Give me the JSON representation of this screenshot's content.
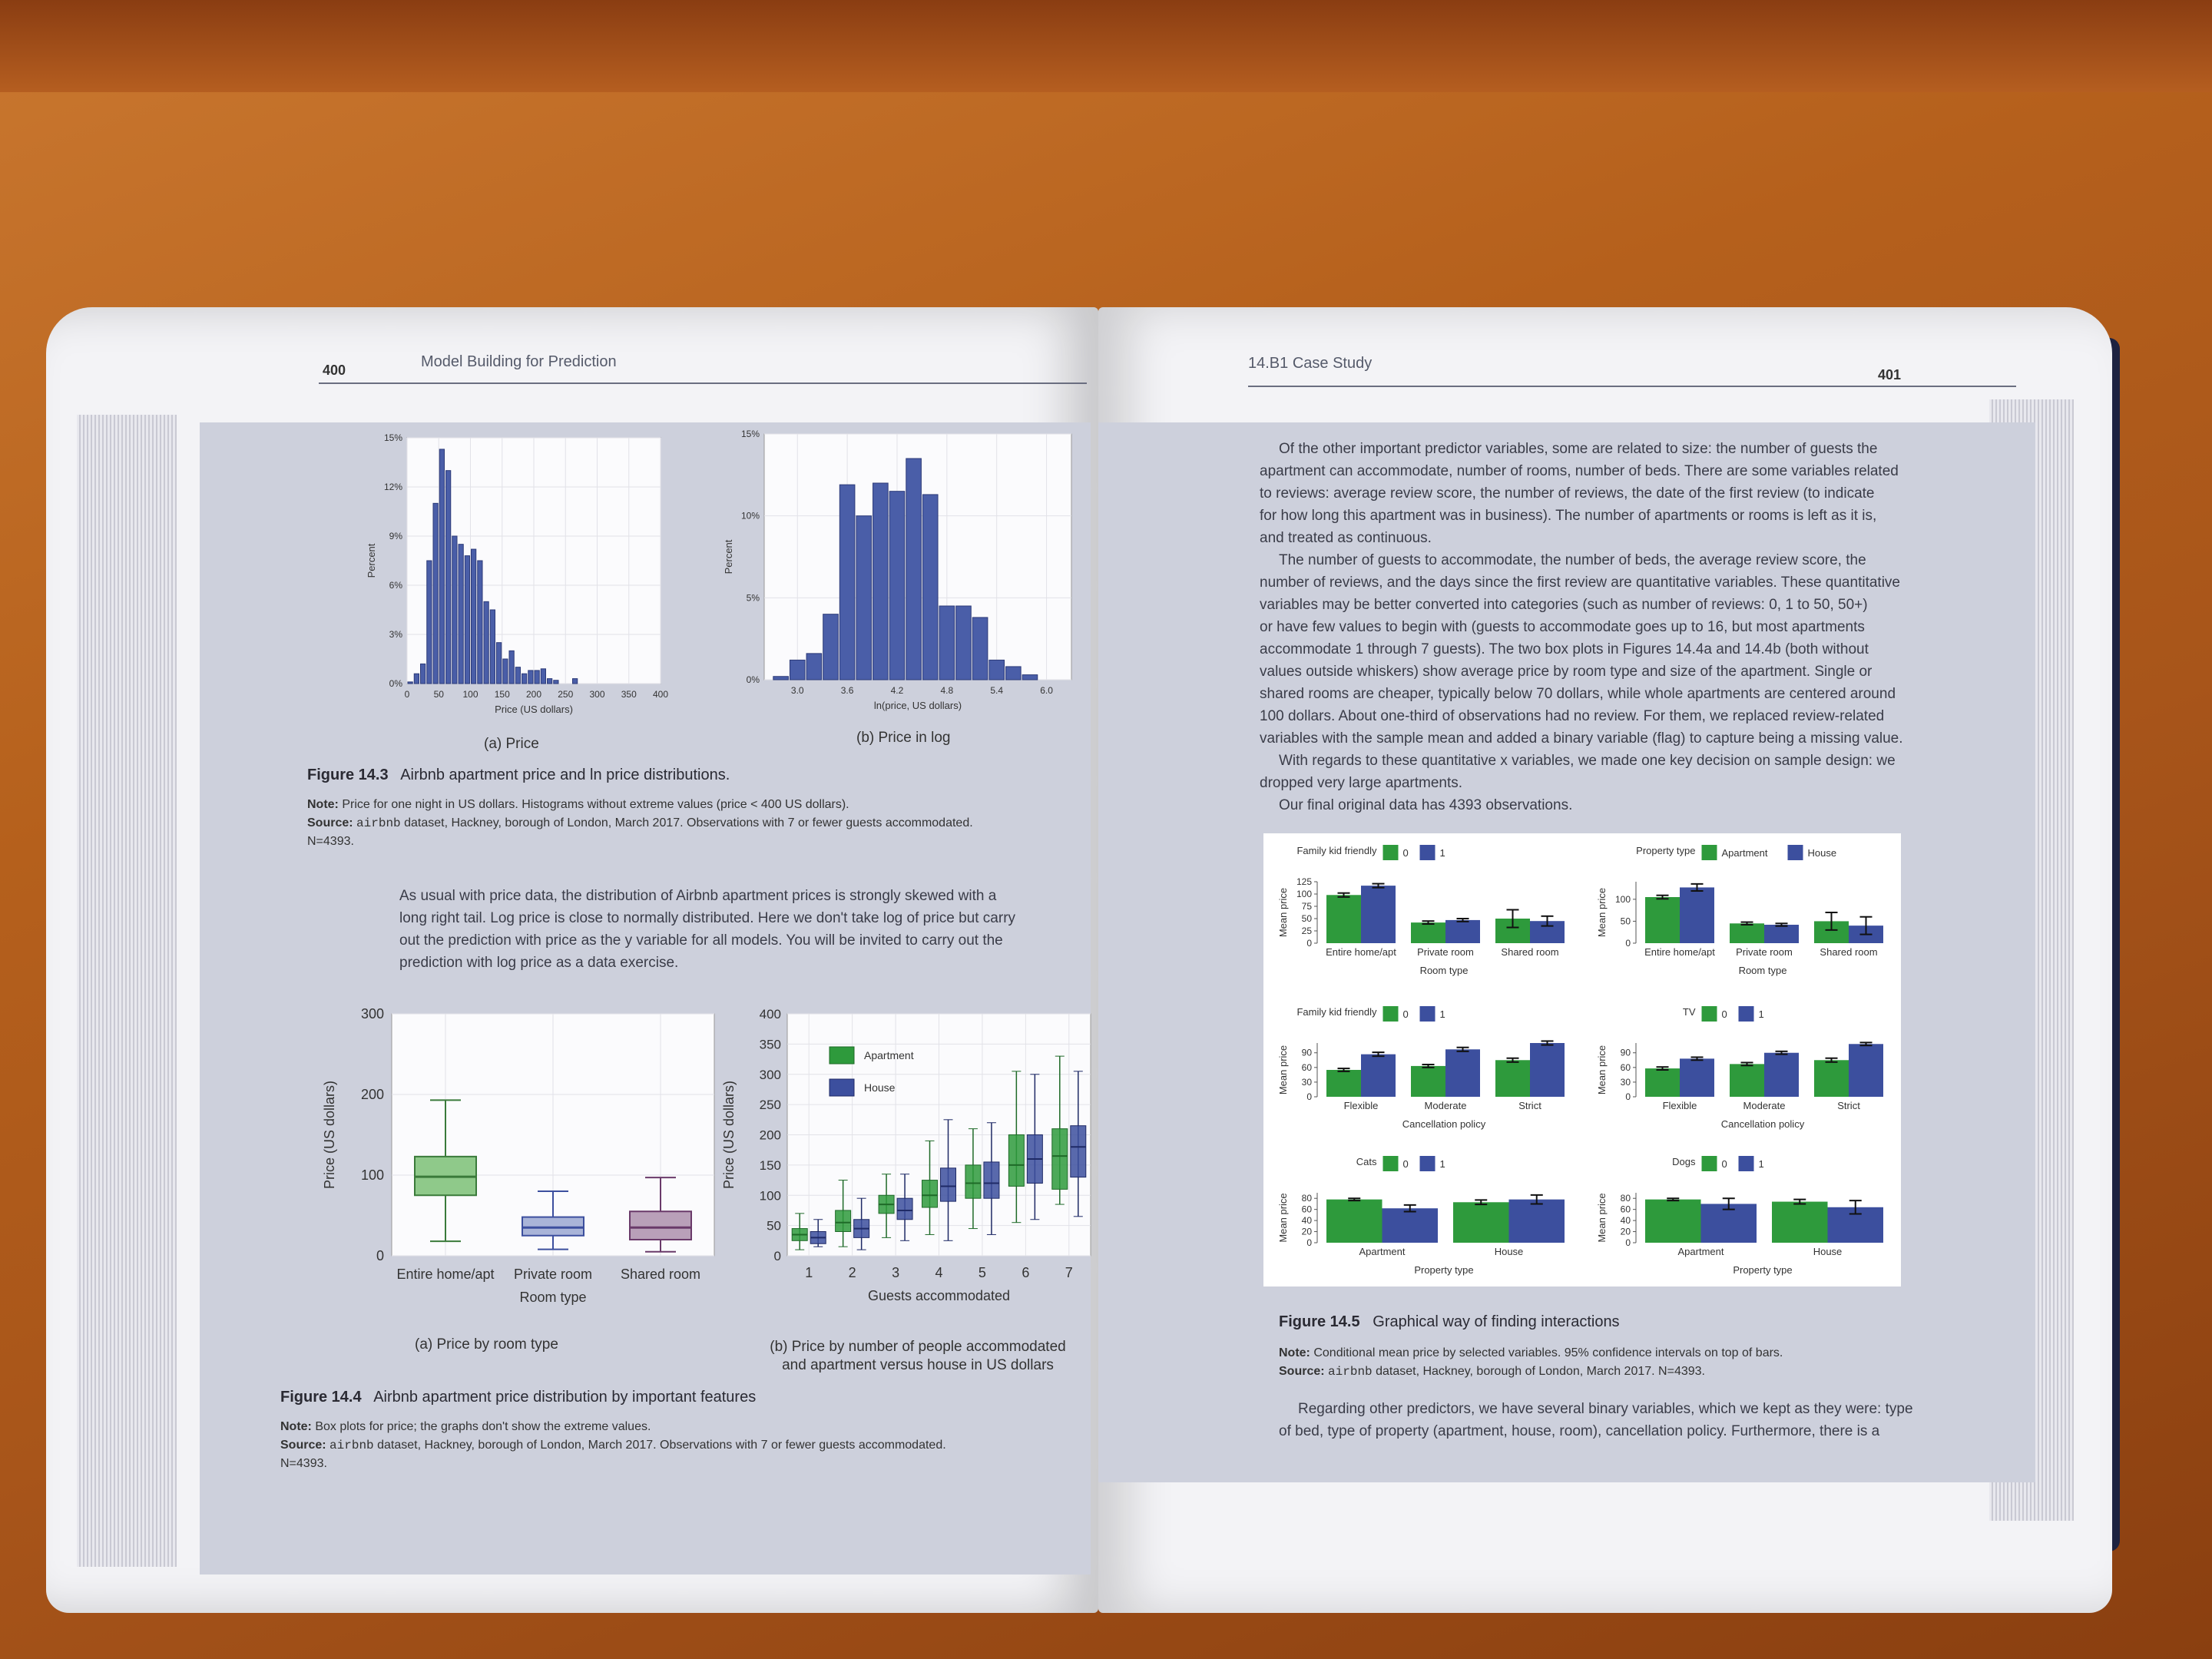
{
  "left_page": {
    "page_number": "400",
    "running_head": "Model Building for Prediction",
    "figure_14_3": {
      "label": "Figure 14.3",
      "title": "Airbnb apartment price and ln price distributions.",
      "note_label": "Note:",
      "note": "Price for one night in US dollars. Histograms without extreme values (price < 400 US dollars).",
      "source_label": "Source:",
      "source_dataset": "airbnb",
      "source": "dataset, Hackney, borough of London, March 2017. Observations with 7 or fewer guests accommodated.",
      "n": "N=4393.",
      "panel_a_caption": "(a) Price",
      "panel_b_caption": "(b) Price in log"
    },
    "paragraph": [
      "As usual with price data, the distribution of Airbnb apartment prices is strongly skewed with a",
      "long right tail. Log price is close to normally distributed. Here we don't take log of price but carry",
      "out the prediction with price as the y variable for all models. You will be invited to carry out the",
      "prediction with log price as a data exercise."
    ],
    "figure_14_4": {
      "label": "Figure 14.4",
      "title": "Airbnb apartment price distribution by important features",
      "note_label": "Note:",
      "note": "Box plots for price; the graphs don't show the extreme values.",
      "source_label": "Source:",
      "source_dataset": "airbnb",
      "source": "dataset, Hackney, borough of London, March 2017. Observations with 7 or fewer guests accommodated.",
      "n": "N=4393.",
      "panel_a_caption": "(a) Price by room type",
      "panel_b_caption_1": "(b) Price by number of people accommodated",
      "panel_b_caption_2": "and apartment versus house in US dollars"
    }
  },
  "right_page": {
    "page_number": "401",
    "running_head": "14.B1  Case Study",
    "paragraphs": [
      "Of the other important predictor variables, some are related to size: the number of guests the",
      "apartment can accommodate, number of rooms, number of beds. There are some variables related",
      "to reviews: average review score, the number of reviews, the date of the first review (to indicate",
      "for how long this apartment was in business). The number of apartments or rooms is left as it is,",
      "and treated as continuous.",
      "The number of guests to accommodate, the number of beds, the average review score, the",
      "number of reviews, and the days since the first review are quantitative variables. These quantitative",
      "variables may be better converted into categories (such as number of reviews: 0, 1 to 50, 50+)",
      "or have few values to begin with (guests to accommodate goes up to 16, but most apartments",
      "accommodate 1 through 7 guests). The two box plots in Figures 14.4a and 14.4b (both without",
      "values outside whiskers) show average price by room type and size of the apartment. Single or",
      "shared rooms are cheaper, typically below 70 dollars, while whole apartments are centered around",
      "100 dollars. About one-third of observations had no review. For them, we replaced review-related",
      "variables with the sample mean and added a binary variable (flag) to capture being a missing value.",
      "With regards to these quantitative x variables, we made one key decision on sample design: we",
      "dropped very large apartments.",
      "Our final original data has 4393 observations."
    ],
    "figure_14_5": {
      "label": "Figure 14.5",
      "title": "Graphical way of finding interactions",
      "note_label": "Note:",
      "note": "Conditional mean price by selected variables. 95% confidence intervals on top of bars.",
      "source_label": "Source:",
      "source_dataset": "airbnb",
      "source": "dataset, Hackney, borough of London, March 2017. N=4393."
    },
    "last_paragraph": [
      "Regarding other predictors, we have several binary variables, which we kept as they were: type",
      "of bed, type of property (apartment, house, room), cancellation policy. Furthermore, there is a"
    ]
  },
  "colors": {
    "hist_blue": "#4a5ea8",
    "green": "#2e9a3c",
    "blue": "#3c4f9e",
    "box_green": "#8fc98a",
    "box_blue": "#a9b4d8",
    "box_purple": "#b9a0b9"
  },
  "chart_data": [
    {
      "id": "fig14_3a",
      "type": "bar",
      "xlabel": "Price (US dollars)",
      "ylabel": "Percent",
      "xlim": [
        0,
        400
      ],
      "ylim": [
        0,
        15
      ],
      "xticks": [
        "0",
        "50",
        "100",
        "150",
        "200",
        "250",
        "300",
        "350",
        "400"
      ],
      "yticks": [
        "0%",
        "3%",
        "6%",
        "9%",
        "12%",
        "15%"
      ],
      "bin_width": 10,
      "x": [
        5,
        15,
        25,
        35,
        45,
        55,
        65,
        75,
        85,
        95,
        105,
        115,
        125,
        135,
        145,
        155,
        165,
        175,
        185,
        195,
        205,
        215,
        225,
        235,
        245,
        255,
        265,
        275,
        285,
        295,
        305,
        315,
        325,
        335,
        345,
        355,
        365,
        375,
        385,
        395
      ],
      "values": [
        0.1,
        0.6,
        1.2,
        7.5,
        11.0,
        14.3,
        13.0,
        9.0,
        8.5,
        7.8,
        8.2,
        7.5,
        5.0,
        4.5,
        2.5,
        1.5,
        2.0,
        1.0,
        0.6,
        0.8,
        0.8,
        0.9,
        0.3,
        0.2,
        0.0,
        0.0,
        0.3,
        0.0,
        0.0,
        0.0,
        0.0,
        0.0,
        0.0,
        0.0,
        0.0,
        0.0,
        0.0,
        0.0,
        0.0,
        0.0
      ]
    },
    {
      "id": "fig14_3b",
      "type": "bar",
      "xlabel": "ln(price, US dollars)",
      "ylabel": "Percent",
      "xlim": [
        2.6,
        6.3
      ],
      "ylim": [
        0,
        15
      ],
      "xticks": [
        "3.0",
        "3.6",
        "4.2",
        "4.8",
        "5.4",
        "6.0"
      ],
      "yticks": [
        "0%",
        "5%",
        "10%",
        "15%"
      ],
      "bin_width": 0.2,
      "x": [
        2.8,
        3.0,
        3.2,
        3.4,
        3.6,
        3.8,
        4.0,
        4.2,
        4.4,
        4.6,
        4.8,
        5.0,
        5.2,
        5.4,
        5.6,
        5.8
      ],
      "values": [
        0.2,
        1.2,
        1.6,
        4.0,
        11.9,
        10.0,
        12.0,
        11.5,
        13.5,
        11.3,
        4.5,
        4.5,
        3.8,
        1.2,
        0.8,
        0.3
      ]
    },
    {
      "id": "fig14_4a",
      "type": "box",
      "xlabel": "Room type",
      "ylabel": "Price (US dollars)",
      "ylim": [
        0,
        300
      ],
      "yticks": [
        "0",
        "100",
        "200",
        "300"
      ],
      "categories": [
        "Entire home/apt",
        "Private room",
        "Shared room"
      ],
      "boxes": [
        {
          "low": 18,
          "q1": 75,
          "median": 98,
          "q3": 123,
          "high": 193
        },
        {
          "low": 8,
          "q1": 25,
          "median": 35,
          "q3": 48,
          "high": 80
        },
        {
          "low": 5,
          "q1": 20,
          "median": 35,
          "q3": 55,
          "high": 97
        }
      ]
    },
    {
      "id": "fig14_4b",
      "type": "box",
      "xlabel": "Guests accommodated",
      "ylabel": "Price (US dollars)",
      "ylim": [
        0,
        400
      ],
      "yticks": [
        "0",
        "50",
        "100",
        "150",
        "200",
        "250",
        "300",
        "350",
        "400"
      ],
      "categories": [
        "1",
        "2",
        "3",
        "4",
        "5",
        "6",
        "7"
      ],
      "legend": [
        "Apartment",
        "House"
      ],
      "series": [
        {
          "name": "Apartment",
          "boxes": [
            {
              "low": 10,
              "q1": 25,
              "median": 35,
              "q3": 45,
              "high": 70
            },
            {
              "low": 15,
              "q1": 40,
              "median": 55,
              "q3": 75,
              "high": 125
            },
            {
              "low": 30,
              "q1": 70,
              "median": 85,
              "q3": 100,
              "high": 135
            },
            {
              "low": 35,
              "q1": 80,
              "median": 100,
              "q3": 125,
              "high": 190
            },
            {
              "low": 45,
              "q1": 95,
              "median": 120,
              "q3": 150,
              "high": 210
            },
            {
              "low": 55,
              "q1": 115,
              "median": 150,
              "q3": 200,
              "high": 305
            },
            {
              "low": 85,
              "q1": 110,
              "median": 165,
              "q3": 210,
              "high": 330
            }
          ]
        },
        {
          "name": "House",
          "boxes": [
            {
              "low": 15,
              "q1": 20,
              "median": 30,
              "q3": 40,
              "high": 60
            },
            {
              "low": 10,
              "q1": 30,
              "median": 45,
              "q3": 60,
              "high": 95
            },
            {
              "low": 25,
              "q1": 60,
              "median": 75,
              "q3": 95,
              "high": 135
            },
            {
              "low": 25,
              "q1": 90,
              "median": 115,
              "q3": 145,
              "high": 225
            },
            {
              "low": 35,
              "q1": 95,
              "median": 120,
              "q3": 155,
              "high": 220
            },
            {
              "low": 60,
              "q1": 120,
              "median": 160,
              "q3": 200,
              "high": 300
            },
            {
              "low": 65,
              "q1": 130,
              "median": 180,
              "q3": 215,
              "high": 305
            }
          ]
        }
      ]
    },
    {
      "id": "fig14_5a",
      "type": "bar",
      "legend_title": "Family kid friendly",
      "legend": [
        "0",
        "1"
      ],
      "xlabel": "Room type",
      "ylabel": "Mean price",
      "ylim": [
        0,
        125
      ],
      "yticks": [
        "0",
        "25",
        "50",
        "75",
        "100",
        "125"
      ],
      "categories": [
        "Entire home/apt",
        "Private room",
        "Shared room"
      ],
      "series": [
        {
          "name": "0",
          "values": [
            98,
            42,
            50
          ],
          "err": [
            4,
            3,
            18
          ]
        },
        {
          "name": "1",
          "values": [
            117,
            47,
            45
          ],
          "err": [
            4,
            3,
            10
          ]
        }
      ]
    },
    {
      "id": "fig14_5b",
      "type": "bar",
      "legend_title": "Property type",
      "legend": [
        "Apartment",
        "House"
      ],
      "xlabel": "Room type",
      "ylabel": "Mean price",
      "ylim": [
        0,
        140
      ],
      "yticks": [
        "0",
        "50",
        "100"
      ],
      "categories": [
        "Entire home/apt",
        "Private room",
        "Shared room"
      ],
      "series": [
        {
          "name": "Apartment",
          "values": [
            105,
            45,
            50
          ],
          "err": [
            4,
            3,
            20
          ]
        },
        {
          "name": "House",
          "values": [
            127,
            42,
            40
          ],
          "err": [
            8,
            3,
            20
          ]
        }
      ]
    },
    {
      "id": "fig14_5c",
      "type": "bar",
      "legend_title": "Family kid friendly",
      "legend": [
        "0",
        "1"
      ],
      "xlabel": "Cancellation policy",
      "ylabel": "Mean price",
      "ylim": [
        0,
        110
      ],
      "yticks": [
        "0",
        "30",
        "60",
        "90"
      ],
      "categories": [
        "Flexible",
        "Moderate",
        "Strict"
      ],
      "series": [
        {
          "name": "0",
          "values": [
            55,
            63,
            75
          ],
          "err": [
            3,
            3,
            4
          ]
        },
        {
          "name": "1",
          "values": [
            87,
            97,
            110
          ],
          "err": [
            4,
            4,
            4
          ]
        }
      ]
    },
    {
      "id": "fig14_5d",
      "type": "bar",
      "legend_title": "TV",
      "legend": [
        "0",
        "1"
      ],
      "xlabel": "Cancellation policy",
      "ylabel": "Mean price",
      "ylim": [
        0,
        110
      ],
      "yticks": [
        "0",
        "30",
        "60",
        "90"
      ],
      "categories": [
        "Flexible",
        "Moderate",
        "Strict"
      ],
      "series": [
        {
          "name": "0",
          "values": [
            58,
            67,
            75
          ],
          "err": [
            3,
            3,
            4
          ]
        },
        {
          "name": "1",
          "values": [
            78,
            90,
            108
          ],
          "err": [
            3,
            3,
            3
          ]
        }
      ]
    },
    {
      "id": "fig14_5e",
      "type": "bar",
      "legend_title": "Cats",
      "legend": [
        "0",
        "1"
      ],
      "xlabel": "Property type",
      "ylabel": "Mean price",
      "ylim": [
        0,
        90
      ],
      "yticks": [
        "0",
        "20",
        "40",
        "60",
        "80"
      ],
      "categories": [
        "Apartment",
        "House"
      ],
      "series": [
        {
          "name": "0",
          "values": [
            78,
            73
          ],
          "err": [
            2,
            4
          ]
        },
        {
          "name": "1",
          "values": [
            62,
            78
          ],
          "err": [
            6,
            8
          ]
        }
      ]
    },
    {
      "id": "fig14_5f",
      "type": "bar",
      "legend_title": "Dogs",
      "legend": [
        "0",
        "1"
      ],
      "xlabel": "Property type",
      "ylabel": "Mean price",
      "ylim": [
        0,
        90
      ],
      "yticks": [
        "0",
        "20",
        "40",
        "60",
        "80"
      ],
      "categories": [
        "Apartment",
        "House"
      ],
      "series": [
        {
          "name": "0",
          "values": [
            78,
            74
          ],
          "err": [
            2,
            4
          ]
        },
        {
          "name": "1",
          "values": [
            70,
            64
          ],
          "err": [
            10,
            12
          ]
        }
      ]
    }
  ]
}
